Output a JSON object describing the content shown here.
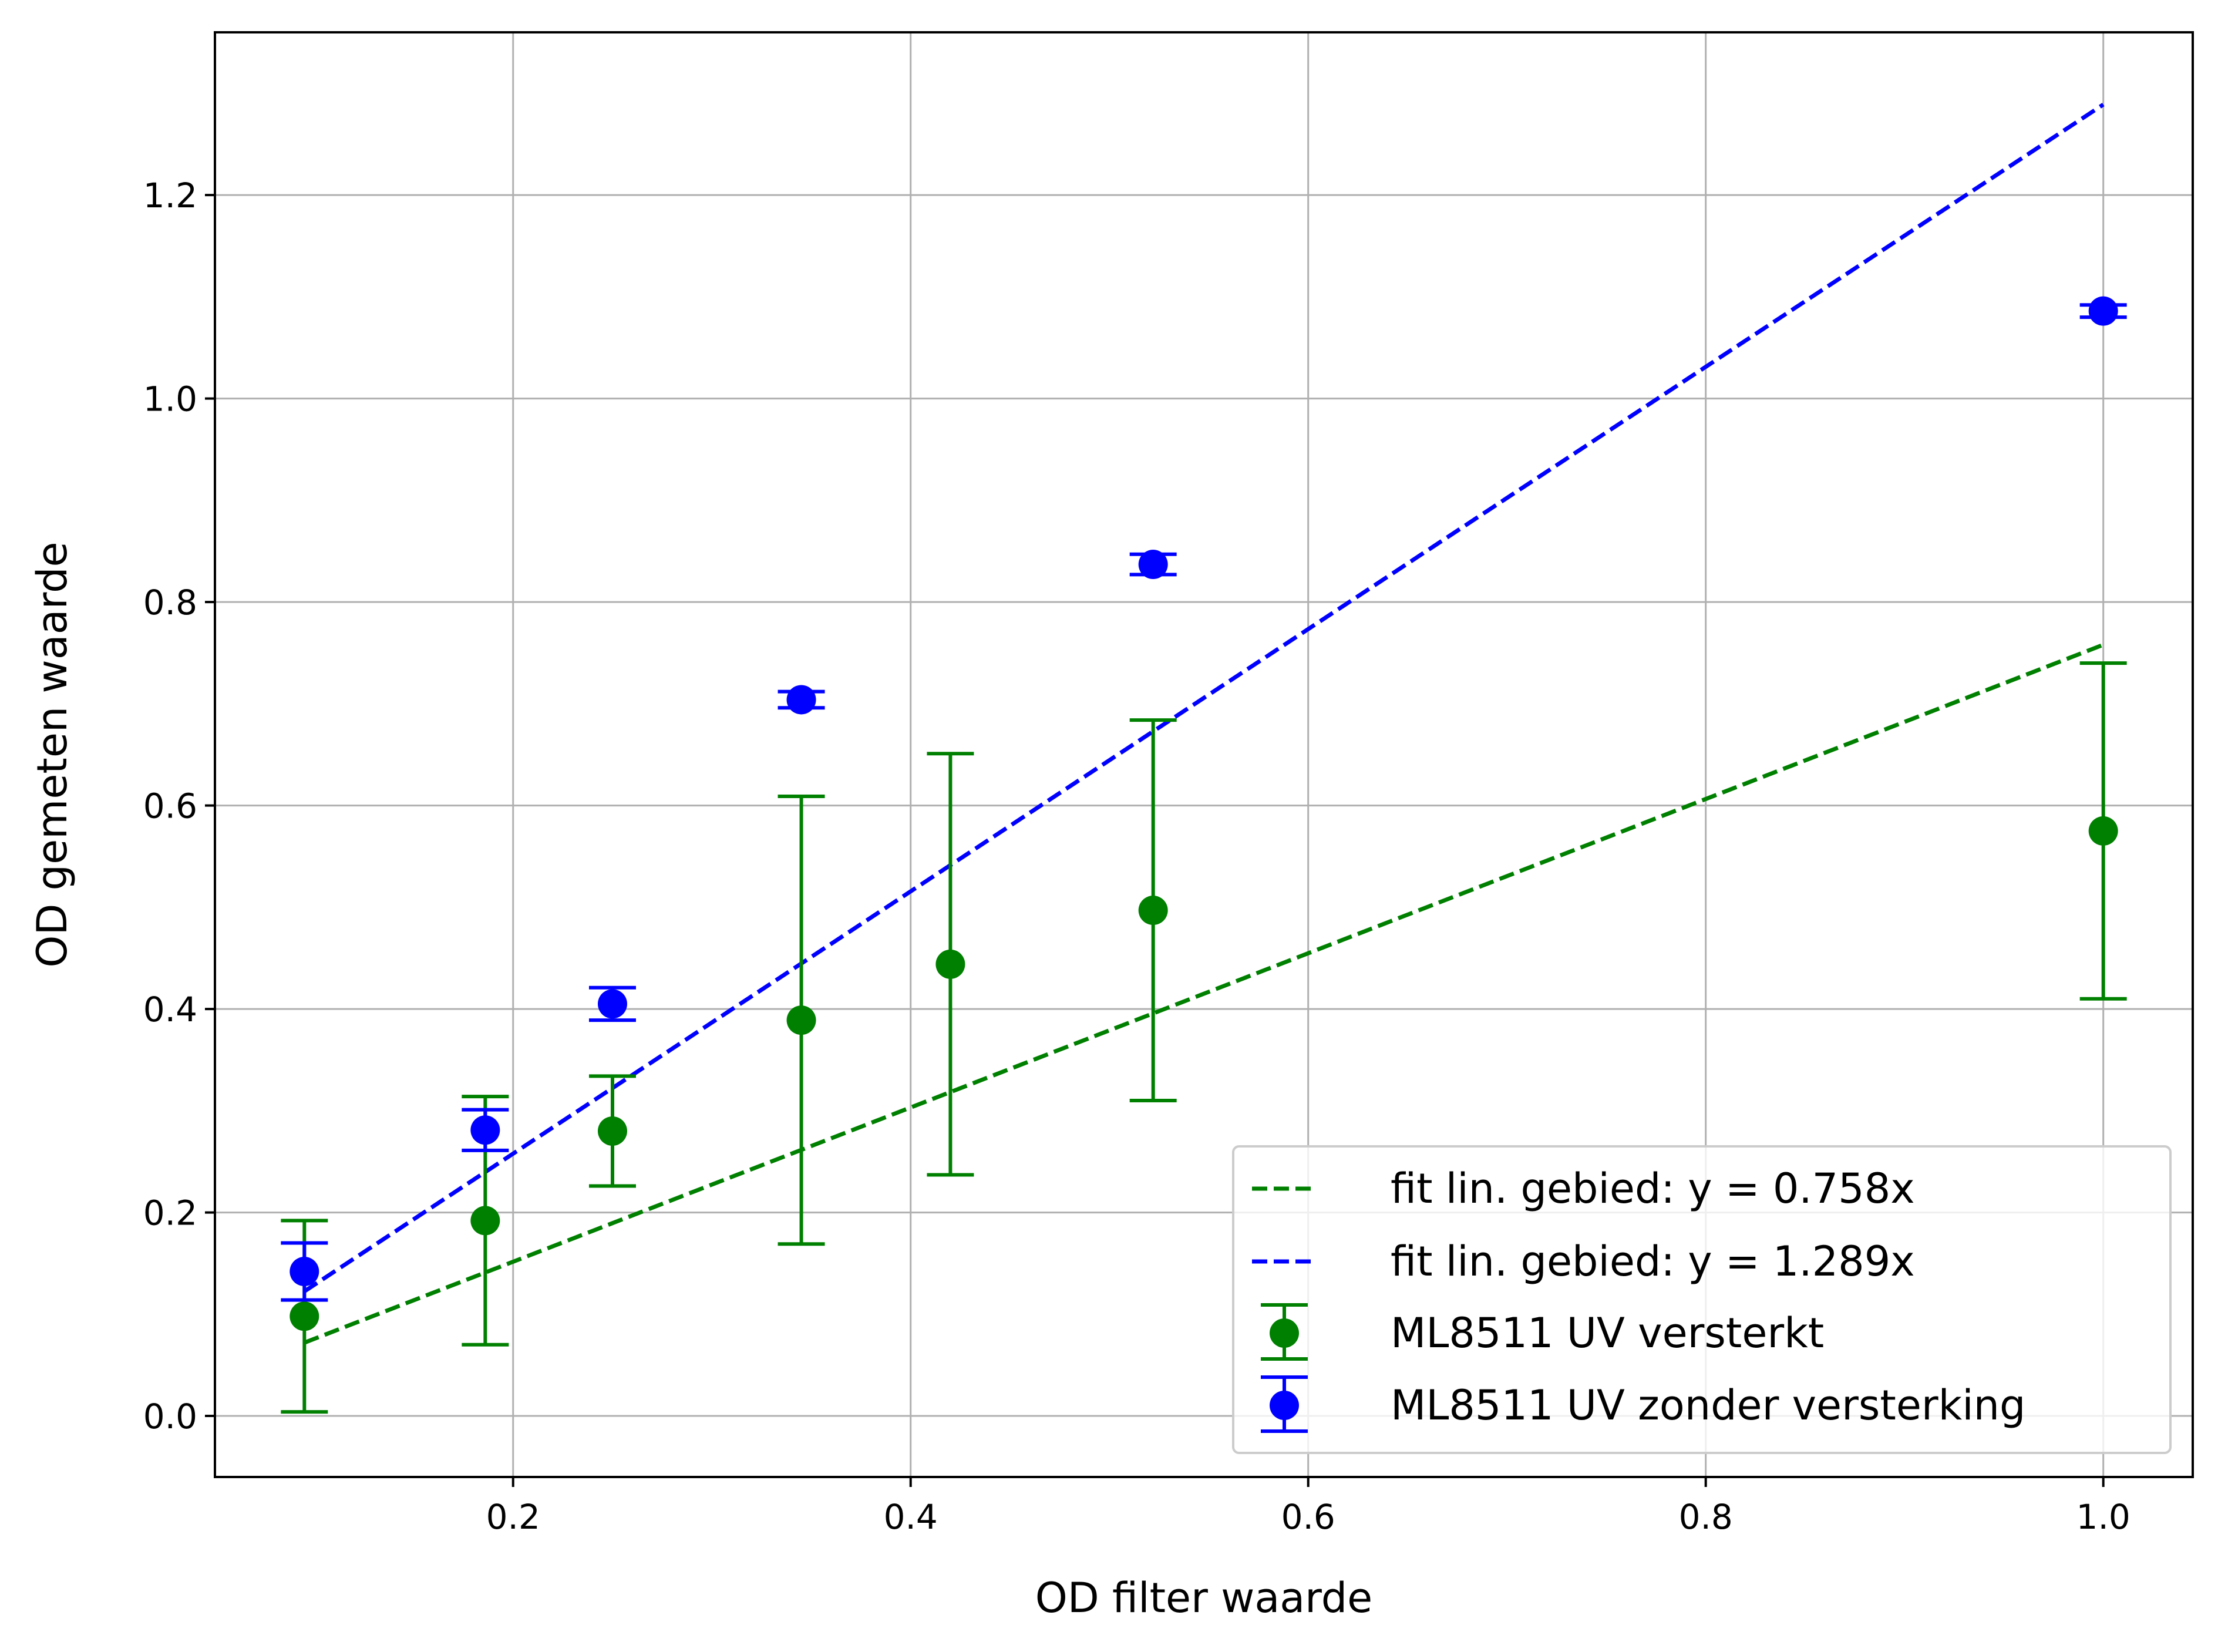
{
  "chart_data": {
    "type": "scatter",
    "xlabel": "OD filter waarde",
    "ylabel": "OD gemeten waarde",
    "xlim": [
      0.05,
      1.045
    ],
    "ylim": [
      -0.06,
      1.36
    ],
    "grid": true,
    "legend_position": "lower-right",
    "x_ticks": [
      {
        "value": 0.2,
        "label": "0.2"
      },
      {
        "value": 0.4,
        "label": "0.4"
      },
      {
        "value": 0.6,
        "label": "0.6"
      },
      {
        "value": 0.8,
        "label": "0.8"
      },
      {
        "value": 1.0,
        "label": "1.0"
      }
    ],
    "y_ticks": [
      {
        "value": 0.0,
        "label": "0.0"
      },
      {
        "value": 0.2,
        "label": "0.2"
      },
      {
        "value": 0.4,
        "label": "0.4"
      },
      {
        "value": 0.6,
        "label": "0.6"
      },
      {
        "value": 0.8,
        "label": "0.8"
      },
      {
        "value": 1.0,
        "label": "1.0"
      },
      {
        "value": 1.2,
        "label": "1.2"
      }
    ],
    "fit_lines": [
      {
        "name": "fit lin. gebied: y = 0.758x",
        "slope": 0.758,
        "x_range": [
          0.095,
          1.0
        ],
        "color": "#008000",
        "style": "dashed"
      },
      {
        "name": "fit lin. gebied: y = 1.289x",
        "slope": 1.289,
        "x_range": [
          0.095,
          1.0
        ],
        "color": "#0000ff",
        "style": "dashed"
      }
    ],
    "series": [
      {
        "name": "ML8511 UV versterkt",
        "color": "#008000",
        "x": [
          0.095,
          0.186,
          0.25,
          0.345,
          0.42,
          0.522,
          1.0
        ],
        "y": [
          0.098,
          0.192,
          0.28,
          0.389,
          0.444,
          0.497,
          0.575
        ],
        "yerr": [
          0.094,
          0.122,
          0.054,
          0.22,
          0.207,
          0.187,
          0.165
        ]
      },
      {
        "name": "ML8511 UV zonder versterking",
        "color": "#0000ff",
        "x": [
          0.095,
          0.186,
          0.25,
          0.345,
          0.522,
          1.0
        ],
        "y": [
          0.142,
          0.281,
          0.405,
          0.704,
          0.837,
          1.086
        ],
        "yerr": [
          0.028,
          0.02,
          0.016,
          0.008,
          0.01,
          0.006
        ]
      }
    ]
  }
}
